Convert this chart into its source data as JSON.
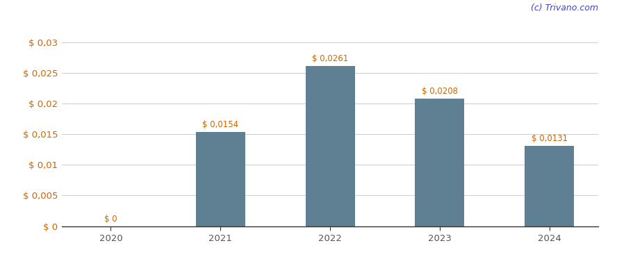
{
  "categories": [
    "2020",
    "2021",
    "2022",
    "2023",
    "2024"
  ],
  "values": [
    0.0,
    0.0154,
    0.0261,
    0.0208,
    0.0131
  ],
  "bar_labels": [
    "$ 0",
    "$ 0,0154",
    "$ 0,0261",
    "$ 0,0208",
    "$ 0,0131"
  ],
  "bar_color": "#5f7f93",
  "background_color": "#ffffff",
  "ylim": [
    0,
    0.0335
  ],
  "yticks": [
    0.0,
    0.005,
    0.01,
    0.015,
    0.02,
    0.025,
    0.03
  ],
  "ytick_labels": [
    "$ 0",
    "$ 0,005",
    "$ 0,01",
    "$ 0,015",
    "$ 0,02",
    "$ 0,025",
    "$ 0,03"
  ],
  "watermark": "(c) Trivano.com",
  "watermark_color": "#4444bb",
  "label_color": "#cc6600",
  "ytick_color": "#cc6600",
  "xtick_color": "#555555",
  "label_fontsize": 8.5,
  "tick_fontsize": 9.5,
  "watermark_fontsize": 9,
  "grid_color": "#cccccc",
  "bar_width": 0.45,
  "spine_color": "#333333"
}
